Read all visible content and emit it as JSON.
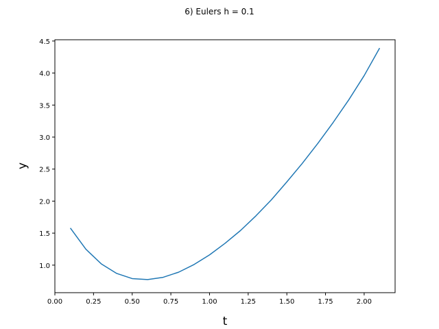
{
  "chart_data": {
    "type": "line",
    "title": "6) Eulers h = 0.1",
    "xlabel": "t",
    "ylabel": "y",
    "xlim": [
      0.0,
      2.2
    ],
    "ylim": [
      0.57,
      4.52
    ],
    "grid": false,
    "x_ticks": [
      "0.00",
      "0.25",
      "0.50",
      "0.75",
      "1.00",
      "1.25",
      "1.50",
      "1.75",
      "2.00"
    ],
    "y_ticks": [
      "1.0",
      "1.5",
      "2.0",
      "2.5",
      "3.0",
      "3.5",
      "4.0",
      "4.5"
    ],
    "series": [
      {
        "color": "#1f77b4",
        "x": [
          0.1,
          0.2,
          0.3,
          0.4,
          0.5,
          0.6,
          0.7,
          0.8,
          0.9,
          1.0,
          1.1,
          1.2,
          1.3,
          1.4,
          1.5,
          1.6,
          1.7,
          1.8,
          1.9,
          2.0,
          2.1
        ],
        "y": [
          1.58,
          1.25,
          1.02,
          0.87,
          0.79,
          0.775,
          0.81,
          0.89,
          1.01,
          1.16,
          1.34,
          1.54,
          1.77,
          2.02,
          2.3,
          2.59,
          2.9,
          3.23,
          3.58,
          3.96,
          4.39
        ]
      }
    ]
  }
}
